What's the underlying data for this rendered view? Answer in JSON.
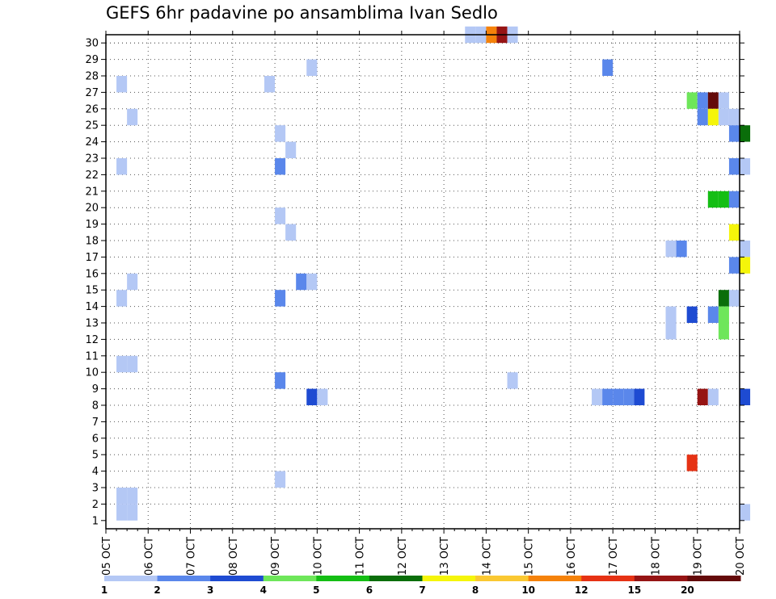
{
  "chart_data": {
    "type": "heatmap",
    "title": "GEFS 6hr padavine po ansamblima Ivan Sedlo",
    "xlabel": "",
    "ylabel": "",
    "x_tick_labels": [
      "05 OCT",
      "06 OCT",
      "07 OCT",
      "08 OCT",
      "09 OCT",
      "10 OCT",
      "11 OCT",
      "12 OCT",
      "13 OCT",
      "14 OCT",
      "15 OCT",
      "16 OCT",
      "17 OCT",
      "18 OCT",
      "19 OCT",
      "20 OCT"
    ],
    "y_tick_labels": [
      "1",
      "2",
      "3",
      "4",
      "5",
      "6",
      "7",
      "8",
      "9",
      "10",
      "11",
      "12",
      "13",
      "14",
      "15",
      "16",
      "17",
      "18",
      "19",
      "20",
      "21",
      "22",
      "23",
      "24",
      "25",
      "26",
      "27",
      "28",
      "29",
      "30"
    ],
    "x_range_days": [
      0,
      15
    ],
    "y_range": [
      0.5,
      30.5
    ],
    "grid": true,
    "legend": {
      "placement": "bottom",
      "colors": [
        "#b4c8f5",
        "#5a87eb",
        "#1e4bd2",
        "#6ee65a",
        "#14be14",
        "#0a6e0a",
        "#f5f50a",
        "#fac832",
        "#f5820a",
        "#e63214",
        "#961414",
        "#640a0a"
      ],
      "labels": [
        "1",
        "2",
        "3",
        "4",
        "5",
        "6",
        "7",
        "8",
        "10",
        "12",
        "15",
        "20"
      ]
    },
    "value_bins": [
      1,
      2,
      3,
      4,
      5,
      6,
      7,
      8,
      10,
      12,
      15,
      20
    ],
    "cells": [
      {
        "member": 30,
        "day": 8.5,
        "value": 1
      },
      {
        "member": 30,
        "day": 8.75,
        "value": 1
      },
      {
        "member": 30,
        "day": 9.0,
        "value": 10
      },
      {
        "member": 30,
        "day": 9.25,
        "value": 15
      },
      {
        "member": 30,
        "day": 9.5,
        "value": 1
      },
      {
        "member": 28,
        "day": 4.75,
        "value": 1
      },
      {
        "member": 28,
        "day": 11.75,
        "value": 2
      },
      {
        "member": 27,
        "day": 0.25,
        "value": 1
      },
      {
        "member": 27,
        "day": 3.75,
        "value": 1
      },
      {
        "member": 26,
        "day": 13.75,
        "value": 4
      },
      {
        "member": 26,
        "day": 14.0,
        "value": 2
      },
      {
        "member": 26,
        "day": 14.25,
        "value": 20
      },
      {
        "member": 26,
        "day": 14.5,
        "value": 1
      },
      {
        "member": 25,
        "day": 0.5,
        "value": 1
      },
      {
        "member": 25,
        "day": 14.0,
        "value": 2
      },
      {
        "member": 25,
        "day": 14.25,
        "value": 7
      },
      {
        "member": 25,
        "day": 14.5,
        "value": 1
      },
      {
        "member": 25,
        "day": 14.75,
        "value": 1
      },
      {
        "member": 24,
        "day": 4.0,
        "value": 1
      },
      {
        "member": 24,
        "day": 14.75,
        "value": 2
      },
      {
        "member": 24,
        "day": 15.0,
        "value": 6
      },
      {
        "member": 23,
        "day": 4.25,
        "value": 1
      },
      {
        "member": 22,
        "day": 0.25,
        "value": 1
      },
      {
        "member": 22,
        "day": 4.0,
        "value": 2
      },
      {
        "member": 22,
        "day": 14.75,
        "value": 2
      },
      {
        "member": 22,
        "day": 15.0,
        "value": 1
      },
      {
        "member": 20,
        "day": 14.25,
        "value": 5
      },
      {
        "member": 20,
        "day": 14.5,
        "value": 5
      },
      {
        "member": 20,
        "day": 14.75,
        "value": 2
      },
      {
        "member": 19,
        "day": 4.0,
        "value": 1
      },
      {
        "member": 18,
        "day": 4.25,
        "value": 1
      },
      {
        "member": 18,
        "day": 14.75,
        "value": 7
      },
      {
        "member": 17,
        "day": 13.25,
        "value": 1
      },
      {
        "member": 17,
        "day": 13.5,
        "value": 2
      },
      {
        "member": 17,
        "day": 15.0,
        "value": 1
      },
      {
        "member": 16,
        "day": 14.75,
        "value": 2
      },
      {
        "member": 16,
        "day": 15.0,
        "value": 7
      },
      {
        "member": 15,
        "day": 0.5,
        "value": 1
      },
      {
        "member": 15,
        "day": 4.5,
        "value": 2
      },
      {
        "member": 15,
        "day": 4.75,
        "value": 1
      },
      {
        "member": 14,
        "day": 0.25,
        "value": 1
      },
      {
        "member": 14,
        "day": 4.0,
        "value": 2
      },
      {
        "member": 14,
        "day": 14.5,
        "value": 6
      },
      {
        "member": 14,
        "day": 14.75,
        "value": 1
      },
      {
        "member": 13,
        "day": 13.25,
        "value": 1
      },
      {
        "member": 13,
        "day": 13.75,
        "value": 3
      },
      {
        "member": 13,
        "day": 14.25,
        "value": 2
      },
      {
        "member": 13,
        "day": 14.5,
        "value": 4
      },
      {
        "member": 12,
        "day": 13.25,
        "value": 1
      },
      {
        "member": 12,
        "day": 14.5,
        "value": 4
      },
      {
        "member": 10,
        "day": 0.25,
        "value": 1
      },
      {
        "member": 10,
        "day": 0.5,
        "value": 1
      },
      {
        "member": 9,
        "day": 4.0,
        "value": 2
      },
      {
        "member": 9,
        "day": 9.5,
        "value": 1
      },
      {
        "member": 8,
        "day": 4.75,
        "value": 3
      },
      {
        "member": 8,
        "day": 5.0,
        "value": 1
      },
      {
        "member": 8,
        "day": 11.5,
        "value": 1
      },
      {
        "member": 8,
        "day": 11.75,
        "value": 2
      },
      {
        "member": 8,
        "day": 12.0,
        "value": 2
      },
      {
        "member": 8,
        "day": 12.25,
        "value": 2
      },
      {
        "member": 8,
        "day": 12.5,
        "value": 3
      },
      {
        "member": 8,
        "day": 14.0,
        "value": 15
      },
      {
        "member": 8,
        "day": 14.25,
        "value": 1
      },
      {
        "member": 8,
        "day": 15.0,
        "value": 3
      },
      {
        "member": 4,
        "day": 13.75,
        "value": 12
      },
      {
        "member": 3,
        "day": 4.0,
        "value": 1
      },
      {
        "member": 2,
        "day": 0.25,
        "value": 1
      },
      {
        "member": 2,
        "day": 0.5,
        "value": 1
      },
      {
        "member": 1,
        "day": 0.25,
        "value": 1
      },
      {
        "member": 1,
        "day": 0.5,
        "value": 1
      },
      {
        "member": 1,
        "day": 15.0,
        "value": 1
      }
    ]
  }
}
